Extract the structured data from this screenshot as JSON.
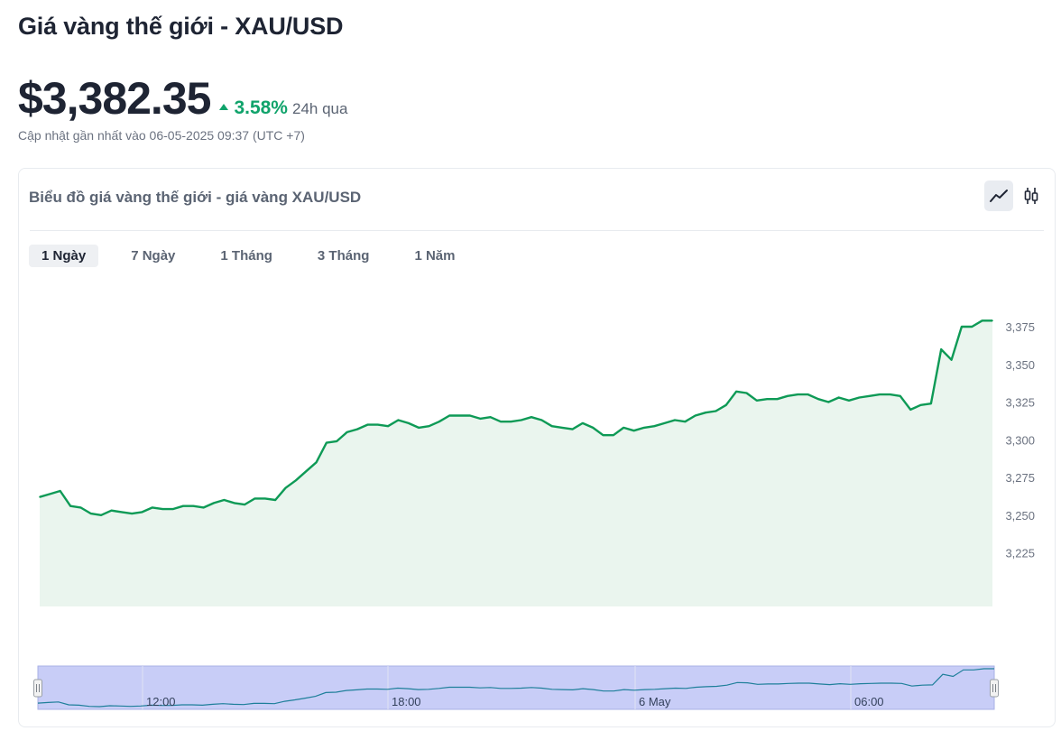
{
  "header": {
    "title": "Giá vàng thế giới - XAU/USD",
    "price": "$3,382.35",
    "change_pct": "3.58%",
    "change_period": "24h qua",
    "updated": "Cập nhật gần nhất vào 06-05-2025 09:37 (UTC +7)"
  },
  "chart_card": {
    "title": "Biểu đồ giá vàng thế giới - giá vàng XAU/USD",
    "view_modes": [
      {
        "name": "line-chart-icon",
        "active": true
      },
      {
        "name": "candlestick-icon",
        "active": false
      }
    ],
    "tabs": [
      {
        "label": "1 Ngày",
        "active": true
      },
      {
        "label": "7 Ngày",
        "active": false
      },
      {
        "label": "1 Tháng",
        "active": false
      },
      {
        "label": "3 Tháng",
        "active": false
      },
      {
        "label": "1 Năm",
        "active": false
      }
    ]
  },
  "colors": {
    "line": "#0e9a56",
    "area": "#eaf5ee",
    "positive": "#10a36b",
    "navigator_band": "#c8cdf7",
    "navigator_line": "#1e7f9a"
  },
  "chart_data": {
    "type": "area",
    "title": "",
    "xlabel": "",
    "ylabel": "",
    "ylim": [
      3220,
      3390
    ],
    "y_ticks": [
      3225,
      3250,
      3275,
      3300,
      3325,
      3350,
      3375
    ],
    "y_tick_labels": [
      "3,225",
      "3,250",
      "3,275",
      "3,300",
      "3,325",
      "3,350",
      "3,375"
    ],
    "grid": false,
    "series": [
      {
        "values": [
          3262,
          3264,
          3266,
          3256,
          3255,
          3251,
          3250,
          3253,
          3252,
          3251,
          3252,
          3255,
          3254,
          3254,
          3256,
          3256,
          3255,
          3258,
          3260,
          3258,
          3257,
          3261,
          3261,
          3260,
          3268,
          3273,
          3279,
          3285,
          3298,
          3299,
          3305,
          3307,
          3310,
          3310,
          3309,
          3313,
          3311,
          3308,
          3309,
          3312,
          3316,
          3316,
          3316,
          3314,
          3315,
          3312,
          3312,
          3313,
          3315,
          3313,
          3309,
          3308,
          3307,
          3311,
          3308,
          3303,
          3303,
          3308,
          3306,
          3308,
          3309,
          3311,
          3313,
          3312,
          3316,
          3318,
          3319,
          3323,
          3332,
          3331,
          3326,
          3327,
          3327,
          3329,
          3330,
          3330,
          3327,
          3325,
          3328,
          3326,
          3328,
          3329,
          3330,
          3330,
          3329,
          3320,
          3323,
          3324,
          3360,
          3353,
          3375,
          3375,
          3379,
          3379
        ]
      }
    ],
    "navigator_labels": [
      "12:00",
      "18:00",
      "6 May",
      "06:00"
    ]
  }
}
